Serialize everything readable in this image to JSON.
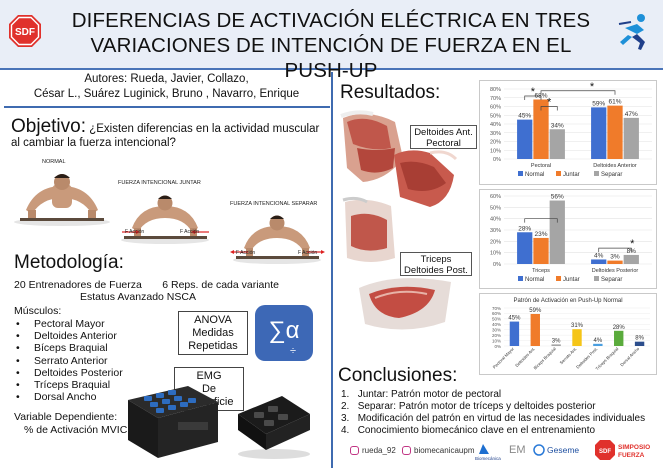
{
  "header": {
    "title_line1": "DIFERENCIAS DE ACTIVACIÓN ELÉCTRICA EN TRES",
    "title_line2": "VARIACIONES DE INTENCIÓN DE FUERZA EN EL PUSH-UP",
    "logo_left_text": "SDF"
  },
  "authors": {
    "line1": "Autores: Rueda, Javier, Collazo,",
    "line2": "César L., Suárez Luginick, Bruno , Navarro, Enrique"
  },
  "objective": {
    "heading": "Objetivo:",
    "question": "¿Existen diferencias en la actividad muscular al cambiar la fuerza intencional?",
    "photo_labels": [
      "NORMAL",
      "FUERZA INTENCIONAL JUNTAR",
      "FUERZA INTENCIONAL SEPARAR"
    ],
    "arrow_labels": [
      "F Acción",
      "F Acción",
      "F Acción",
      "F Acción"
    ]
  },
  "method": {
    "heading": "Metodología:",
    "line1": "20 Entrenadores de Fuerza       6 Reps. de cada variante",
    "line2": "Estatus Avanzado NSCA",
    "muscles_title": "Músculos:",
    "muscles": [
      "Pectoral Mayor",
      "Deltoides Anterior",
      "Bíceps Braquial",
      "Serrato Anterior",
      "Deltoides Posterior",
      "Tríceps Braquial",
      "Dorsal Ancho"
    ],
    "dependent_line1": "Variable Dependiente:",
    "dependent_line2": "% de Activación MVIC",
    "anova_box": [
      "ANOVA",
      "Medidas",
      "Repetidas"
    ],
    "emg_box": [
      "EMG",
      "De",
      "Superficie"
    ],
    "stat_symbol": "∑α",
    "stat_sub": "÷"
  },
  "results": {
    "heading": "Resultados:",
    "label_box_1": [
      "Deltoides Ant.",
      "Pectoral"
    ],
    "label_box_2": [
      "Triceps",
      "Deltoides Post."
    ]
  },
  "colors": {
    "normal": "#3f6fd0",
    "juntar": "#f07b2a",
    "separar": "#a5a5a5",
    "accent_blue": "#3f6bb0",
    "header_bg": "#e9eef7"
  },
  "chart_data": [
    {
      "type": "bar",
      "categories": [
        "Pectoral",
        "Deltoides Anterior"
      ],
      "series": [
        {
          "name": "Normal",
          "values": [
            45,
            59
          ]
        },
        {
          "name": "Juntar",
          "values": [
            68,
            61
          ]
        },
        {
          "name": "Separar",
          "values": [
            34,
            47
          ]
        }
      ],
      "data_labels": [
        [
          "45%",
          "59%"
        ],
        [
          "68%",
          "61%"
        ],
        [
          "34%",
          "47%"
        ]
      ],
      "yticks": [
        "0%",
        "10%",
        "20%",
        "30%",
        "40%",
        "50%",
        "60%",
        "70%",
        "80%"
      ],
      "ylim": [
        0,
        80
      ],
      "significance": "*",
      "legend": "bottom"
    },
    {
      "type": "bar",
      "categories": [
        "Triceps",
        "Deltoides Posterior"
      ],
      "series": [
        {
          "name": "Normal",
          "values": [
            28,
            4
          ]
        },
        {
          "name": "Juntar",
          "values": [
            23,
            3
          ]
        },
        {
          "name": "Separar",
          "values": [
            56,
            8
          ]
        }
      ],
      "data_labels": [
        [
          "28%",
          "4%"
        ],
        [
          "23%",
          "3%"
        ],
        [
          "56%",
          "8%"
        ]
      ],
      "yticks": [
        "0%",
        "10%",
        "20%",
        "30%",
        "40%",
        "50%",
        "60%"
      ],
      "ylim": [
        0,
        60
      ],
      "significance": "*",
      "legend": "bottom"
    },
    {
      "type": "bar",
      "title": "Patrón de Activación en Push-Up Normal",
      "categories": [
        "Pectoral Mayor",
        "Deltoides Ant.",
        "Bíceps Braquial",
        "Serrato Ant.",
        "Deltoides Post.",
        "Tríceps Braquial",
        "Dorsal Ancho"
      ],
      "values": [
        45,
        59,
        3,
        31,
        4,
        28,
        8
      ],
      "data_labels": [
        "45%",
        "59%",
        "3%",
        "31%",
        "4%",
        "28%",
        "8%"
      ],
      "bar_colors": [
        "#3f6fd0",
        "#f07b2a",
        "#a5a5a5",
        "#f5c518",
        "#4a9fe0",
        "#5aab3c",
        "#2b4d8c"
      ],
      "yticks": [
        "0%",
        "10%",
        "20%",
        "30%",
        "40%",
        "50%",
        "60%",
        "70%"
      ],
      "ylim": [
        0,
        70
      ]
    }
  ],
  "conclusions": {
    "heading": "Conclusiones:",
    "items": [
      "Juntar: Patrón motor de pectoral",
      "Separar: Patrón motor de tríceps y deltoides posterior",
      "Modificación del patrón en virtud de las necesidades individuales",
      "Conocimiento biomecánico clave en el entrenamiento"
    ]
  },
  "footer": {
    "instagram_1": "rueda_92",
    "instagram_2": "biomecanicaupm",
    "logo_biomecanica": "Biomecánica",
    "logo_em": "EM",
    "logo_geseme": "Geseme",
    "logo_sdf": "SDF",
    "simposio_line1": "SIMPOSIO",
    "simposio_line2": "FUERZA"
  }
}
